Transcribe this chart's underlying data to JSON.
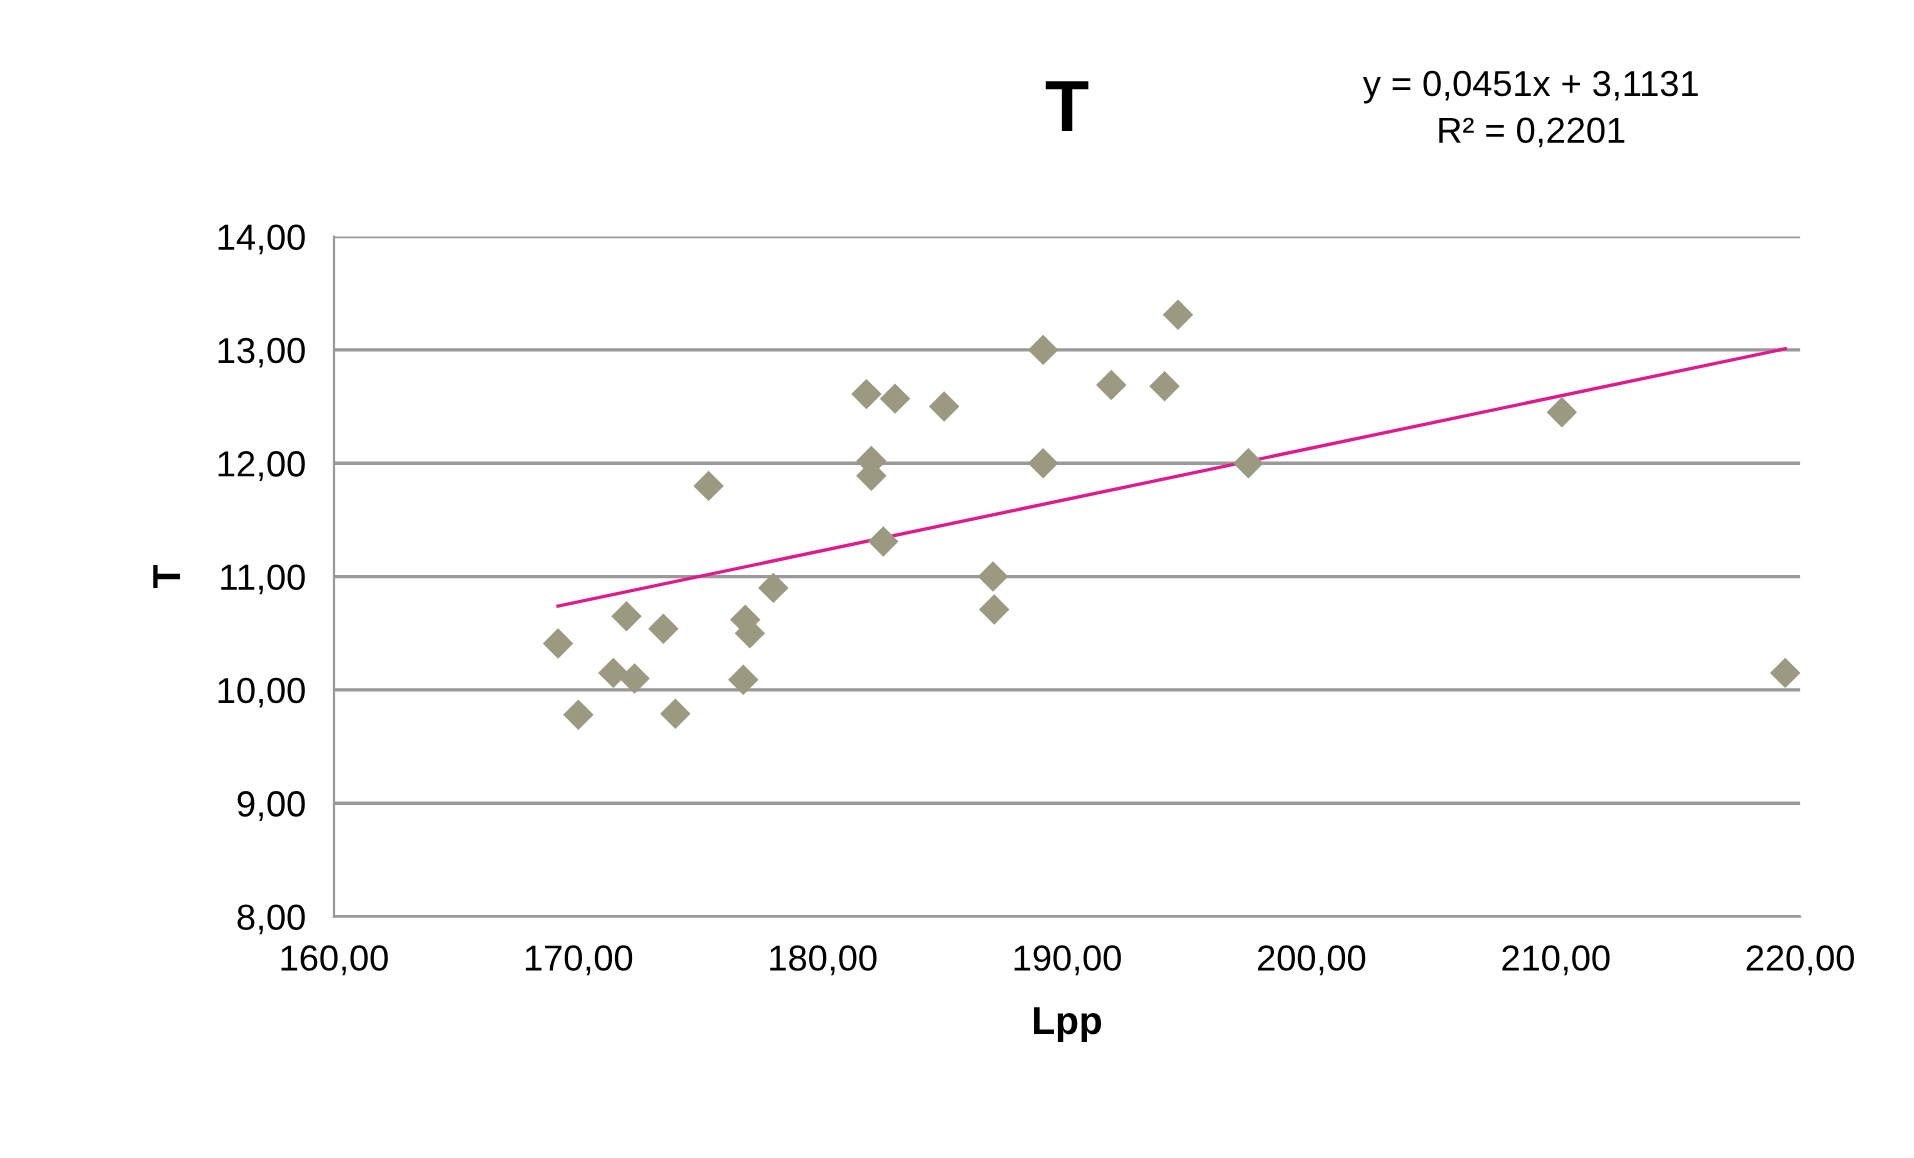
{
  "chart_data": {
    "type": "scatter",
    "title": "T",
    "xlabel": "Lpp",
    "ylabel": "T",
    "annotations": [
      "y = 0,0451x + 3,1131\nR² = 0,2201"
    ],
    "series": [
      {
        "color": "#9b9980",
        "marker": "diamond",
        "x": [
          169.17,
          170.0,
          171.43,
          171.97,
          172.3,
          173.48,
          173.97,
          175.33,
          176.83,
          177.02,
          176.75,
          177.98,
          181.79,
          182.96,
          184.97,
          181.99,
          181.99,
          182.48,
          186.97,
          187.02,
          189.02,
          189.02,
          191.81,
          193.99,
          194.54,
          197.42,
          210.25,
          219.39
        ],
        "values": [
          10.41,
          9.78,
          10.15,
          10.65,
          10.1,
          10.54,
          9.79,
          11.8,
          10.62,
          10.5,
          10.09,
          10.9,
          12.61,
          12.57,
          12.5,
          12.02,
          11.89,
          11.31,
          11.0,
          10.71,
          13.0,
          12.0,
          12.69,
          12.68,
          13.31,
          12.0,
          12.45,
          10.15
        ]
      },
      {
        "type": "line",
        "color": "#e0198c",
        "marker": "none",
        "line_style": "solid",
        "x": [
          169.17,
          219.39
        ],
        "values": [
          10.74,
          13.01
        ]
      }
    ],
    "xlim": [
      160,
      220
    ],
    "ylim": [
      8,
      14
    ],
    "xticks": [
      {
        "value": 160,
        "label": "160,00"
      },
      {
        "value": 170,
        "label": "170,00"
      },
      {
        "value": 180,
        "label": "180,00"
      },
      {
        "value": 190,
        "label": "190,00"
      },
      {
        "value": 200,
        "label": "200,00"
      },
      {
        "value": 210,
        "label": "210,00"
      },
      {
        "value": 220,
        "label": "220,00"
      }
    ],
    "yticks": [
      {
        "value": 8,
        "label": "8,00"
      },
      {
        "value": 9,
        "label": "9,00"
      },
      {
        "value": 10,
        "label": "10,00"
      },
      {
        "value": 11,
        "label": "11,00"
      },
      {
        "value": 12,
        "label": "12,00"
      },
      {
        "value": 13,
        "label": "13,00"
      },
      {
        "value": 14,
        "label": "14,00"
      }
    ],
    "grid": "y",
    "legend": false
  }
}
